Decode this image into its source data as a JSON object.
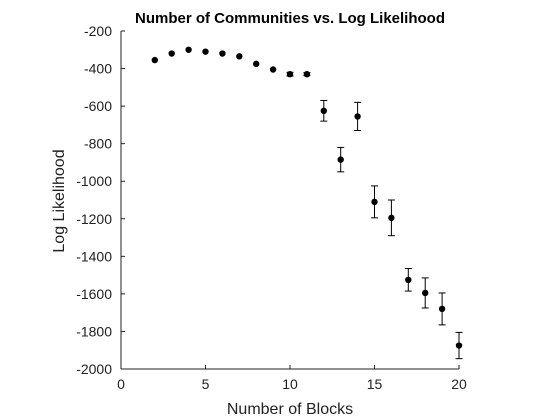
{
  "chart_data": {
    "type": "scatter",
    "title": "Number of Communities vs. Log Likelihood",
    "xlabel": "Number of Blocks",
    "ylabel": "Log Likelihood",
    "xlim": [
      0,
      20
    ],
    "ylim": [
      -2000,
      -200
    ],
    "xticks": [
      0,
      5,
      10,
      15,
      20
    ],
    "yticks": [
      -2000,
      -1800,
      -1600,
      -1400,
      -1200,
      -1000,
      -800,
      -600,
      -400,
      -200
    ],
    "grid": false,
    "colors": {
      "marker": "#000000",
      "axis": "#222222"
    },
    "points": [
      {
        "x": 2,
        "y": -355,
        "err": 0
      },
      {
        "x": 3,
        "y": -320,
        "err": 0
      },
      {
        "x": 4,
        "y": -300,
        "err": 0
      },
      {
        "x": 5,
        "y": -310,
        "err": 0
      },
      {
        "x": 6,
        "y": -320,
        "err": 0
      },
      {
        "x": 7,
        "y": -335,
        "err": 0
      },
      {
        "x": 8,
        "y": -375,
        "err": 0
      },
      {
        "x": 9,
        "y": -405,
        "err": 0
      },
      {
        "x": 10,
        "y": -430,
        "err": 10
      },
      {
        "x": 11,
        "y": -430,
        "err": 8
      },
      {
        "x": 12,
        "y": -625,
        "err": 55
      },
      {
        "x": 13,
        "y": -885,
        "err": 65
      },
      {
        "x": 14,
        "y": -655,
        "err": 75
      },
      {
        "x": 15,
        "y": -1110,
        "err": 85
      },
      {
        "x": 16,
        "y": -1195,
        "err": 95
      },
      {
        "x": 17,
        "y": -1525,
        "err": 60
      },
      {
        "x": 18,
        "y": -1595,
        "err": 80
      },
      {
        "x": 19,
        "y": -1680,
        "err": 85
      },
      {
        "x": 20,
        "y": -1875,
        "err": 70
      }
    ]
  }
}
